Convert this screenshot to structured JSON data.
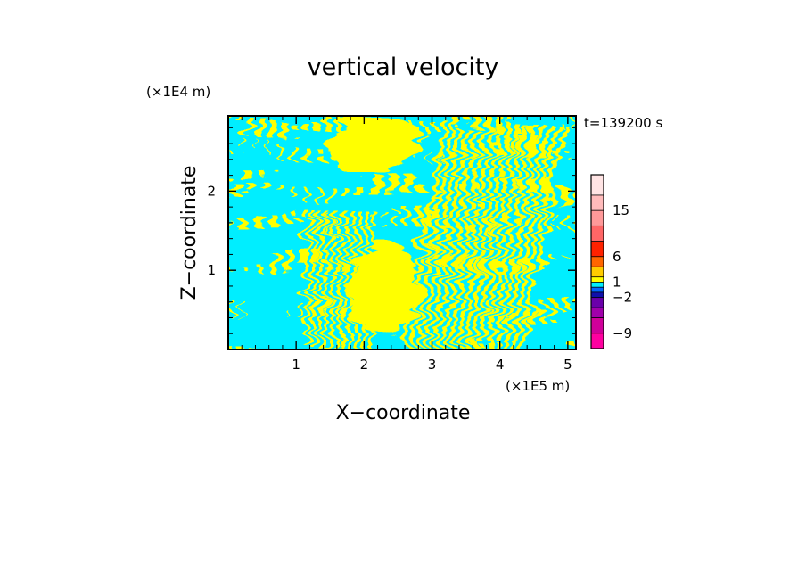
{
  "chart_data": {
    "type": "heatmap",
    "title": "vertical velocity",
    "xlabel": "X−coordinate",
    "ylabel": "Z−coordinate",
    "x_multiplier": "(×1E5 m)",
    "y_multiplier": "(×1E4 m)",
    "time_label": "t=139200 s",
    "xlim": [
      0,
      5.12
    ],
    "ylim": [
      0,
      2.95
    ],
    "x_ticks": [
      1,
      2,
      3,
      4,
      5
    ],
    "x_tick_labels": [
      "1",
      "2",
      "3",
      "4",
      "5"
    ],
    "y_ticks": [
      1,
      2
    ],
    "y_tick_labels": [
      "1",
      "2"
    ],
    "field_colors": {
      "negative": "#00eeff",
      "positive": "#ffff00"
    },
    "colorbar": {
      "levels": [
        -12,
        -9,
        -6,
        -4,
        -2,
        -1,
        0,
        1,
        2,
        4,
        6,
        9,
        12,
        15,
        18,
        22
      ],
      "colors": [
        "#ff00a0",
        "#d0009a",
        "#a000aa",
        "#6a00aa",
        "#1010aa",
        "#0066ff",
        "#00eeff",
        "#ffff00",
        "#ffcc00",
        "#ff6600",
        "#ff2200",
        "#ff6666",
        "#ff9999",
        "#ffbbbb",
        "#ffe4e4"
      ],
      "labeled_levels": [
        -9,
        -2,
        1,
        6,
        15
      ],
      "tick_labels": [
        "−9",
        "−2",
        "1",
        "6",
        "15"
      ]
    }
  }
}
